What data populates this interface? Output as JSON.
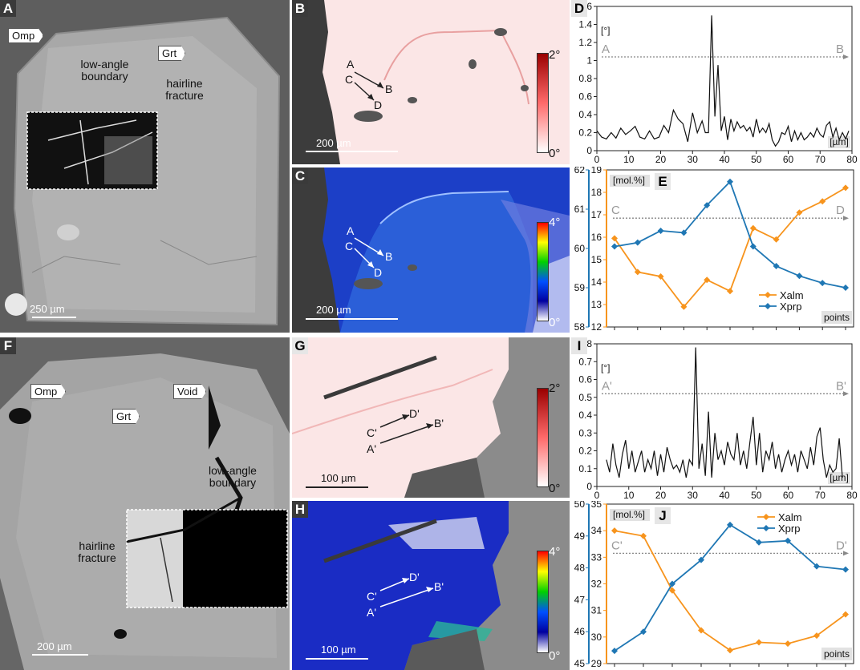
{
  "panels": {
    "A": {
      "label": "A",
      "omp": "Omp",
      "grt": "Grt",
      "ann1": "low-angle boundary",
      "ann2": "hairline fracture",
      "scale": "250 µm"
    },
    "B": {
      "label": "B",
      "pts": [
        "A",
        "C",
        "B",
        "D"
      ],
      "scale": "200 µm",
      "cb_max": "2°",
      "cb_min": "0°"
    },
    "C": {
      "label": "C",
      "pts": [
        "A",
        "C",
        "B",
        "D"
      ],
      "scale": "200 µm",
      "cb_max": "4°",
      "cb_min": "0°"
    },
    "F": {
      "label": "F",
      "omp": "Omp",
      "grt": "Grt",
      "void": "Void",
      "ann1": "low-angle boundary",
      "ann2": "hairline fracture",
      "scale": "200 µm"
    },
    "G": {
      "label": "G",
      "pts": [
        "C'",
        "D'",
        "A'",
        "B'"
      ],
      "scale": "100 µm",
      "cb_max": "2°",
      "cb_min": "0°"
    },
    "H": {
      "label": "H",
      "pts": [
        "C'",
        "D'",
        "A'",
        "B'"
      ],
      "scale": "100 µm",
      "cb_max": "4°",
      "cb_min": "0°"
    }
  },
  "chart_data": [
    {
      "id": "D",
      "type": "line",
      "label": "D",
      "ylabel": "[°]",
      "xlabel": "[µm]",
      "xlim": [
        0,
        80
      ],
      "ylim": [
        0,
        1.6
      ],
      "xticks": [
        0,
        10,
        20,
        30,
        40,
        50,
        60,
        70,
        80
      ],
      "yticks": [
        0,
        0.2,
        0.4,
        0.6,
        0.8,
        1.0,
        1.2,
        1.4,
        1.6
      ],
      "ref_line": {
        "y": 1.04,
        "start": "A",
        "end": "B"
      },
      "x": [
        0,
        1.5,
        3,
        4.5,
        6,
        7.5,
        9,
        10.5,
        12,
        13.5,
        15,
        16.5,
        18,
        19.5,
        21,
        22.5,
        24,
        25.5,
        27,
        28.5,
        30,
        31.5,
        33,
        34,
        35,
        36,
        37,
        38,
        39,
        40,
        41,
        42,
        43,
        44,
        45,
        46,
        47,
        48,
        49,
        50,
        51,
        52,
        53,
        54,
        55,
        56,
        57,
        58,
        59,
        60,
        61,
        62,
        63,
        64,
        65,
        66,
        67,
        68,
        69,
        70,
        71,
        72,
        73,
        74,
        75,
        76,
        77,
        78,
        79
      ],
      "y": [
        0.22,
        0.15,
        0.13,
        0.2,
        0.14,
        0.25,
        0.18,
        0.22,
        0.27,
        0.15,
        0.13,
        0.22,
        0.13,
        0.15,
        0.28,
        0.2,
        0.45,
        0.35,
        0.3,
        0.1,
        0.42,
        0.2,
        0.33,
        0.2,
        0.2,
        1.5,
        0.38,
        0.95,
        0.22,
        0.38,
        0.12,
        0.35,
        0.22,
        0.32,
        0.25,
        0.28,
        0.22,
        0.26,
        0.15,
        0.35,
        0.2,
        0.25,
        0.2,
        0.3,
        0.12,
        0.05,
        0.1,
        0.2,
        0.18,
        0.27,
        0.1,
        0.22,
        0.12,
        0.2,
        0.12,
        0.15,
        0.2,
        0.15,
        0.25,
        0.18,
        0.15,
        0.28,
        0.32,
        0.15,
        0.25,
        0.12,
        0.2,
        0.13,
        0.22
      ]
    },
    {
      "id": "E",
      "type": "line",
      "label": "E",
      "ylabel": "[mol.%]",
      "xlabel": "points",
      "left_axis": {
        "ticks": [
          12,
          13,
          14,
          15,
          16,
          17,
          18,
          19
        ],
        "lim": [
          12,
          19
        ]
      },
      "outer_axis": {
        "ticks": [
          58,
          59,
          60,
          61,
          62
        ],
        "lim": [
          58,
          62
        ]
      },
      "ref_line": {
        "y": 16.85,
        "start": "C",
        "end": "D"
      },
      "series": [
        {
          "name": "Xalm",
          "color": "#f7941d",
          "axis": "left",
          "values": [
            15.95,
            14.45,
            14.25,
            12.9,
            14.1,
            13.6,
            16.4,
            15.9,
            17.1,
            17.6,
            18.2
          ]
        },
        {
          "name": "Xprp",
          "color": "#1f77b4",
          "axis": "outer",
          "values": [
            60.05,
            60.15,
            60.45,
            60.4,
            61.1,
            61.7,
            60.05,
            59.55,
            59.3,
            59.12,
            59.0
          ]
        }
      ]
    },
    {
      "id": "I",
      "type": "line",
      "label": "I",
      "ylabel": "[°]",
      "xlabel": "[µm]",
      "xlim": [
        0,
        80
      ],
      "ylim": [
        0,
        0.8
      ],
      "xticks": [
        0,
        10,
        20,
        30,
        40,
        50,
        60,
        70,
        80
      ],
      "yticks": [
        0,
        0.1,
        0.2,
        0.3,
        0.4,
        0.5,
        0.6,
        0.7,
        0.8
      ],
      "ref_line": {
        "y": 0.52,
        "start": "A'",
        "end": "B'"
      },
      "x": [
        3,
        4,
        5,
        6,
        7,
        8,
        9,
        10,
        11,
        12,
        13,
        14,
        15,
        16,
        17,
        18,
        19,
        20,
        21,
        22,
        23,
        24,
        25,
        26,
        27,
        28,
        29,
        30,
        31,
        32,
        33,
        34,
        35,
        36,
        37,
        38,
        39,
        40,
        41,
        42,
        43,
        44,
        45,
        46,
        47,
        48,
        49,
        50,
        51,
        52,
        53,
        54,
        55,
        56,
        57,
        58,
        59,
        60,
        61,
        62,
        63,
        64,
        65,
        66,
        67,
        68,
        69,
        70,
        71,
        72,
        73,
        74,
        75,
        76,
        77
      ],
      "y": [
        0.15,
        0.08,
        0.24,
        0.12,
        0.05,
        0.18,
        0.26,
        0.1,
        0.2,
        0.08,
        0.14,
        0.2,
        0.08,
        0.15,
        0.1,
        0.2,
        0.06,
        0.18,
        0.08,
        0.22,
        0.15,
        0.1,
        0.12,
        0.08,
        0.15,
        0.05,
        0.15,
        0.12,
        0.78,
        0.1,
        0.24,
        0.06,
        0.42,
        0.05,
        0.3,
        0.15,
        0.2,
        0.12,
        0.25,
        0.18,
        0.15,
        0.3,
        0.12,
        0.2,
        0.1,
        0.25,
        0.39,
        0.12,
        0.3,
        0.08,
        0.2,
        0.15,
        0.25,
        0.1,
        0.18,
        0.08,
        0.15,
        0.2,
        0.12,
        0.18,
        0.08,
        0.2,
        0.15,
        0.1,
        0.22,
        0.12,
        0.28,
        0.33,
        0.15,
        0.05,
        0.12,
        0.08,
        0.1,
        0.27,
        0.05
      ]
    },
    {
      "id": "J",
      "type": "line",
      "label": "J",
      "ylabel": "[mol.%]",
      "xlabel": "points",
      "left_axis": {
        "ticks": [
          29,
          30,
          31,
          32,
          33,
          34,
          35
        ],
        "lim": [
          29,
          35
        ]
      },
      "outer_axis": {
        "ticks": [
          45,
          46,
          47,
          48,
          49,
          50
        ],
        "lim": [
          45,
          50
        ]
      },
      "ref_line": {
        "y": 33.15,
        "start": "C'",
        "end": "D'"
      },
      "series": [
        {
          "name": "Xalm",
          "color": "#f7941d",
          "axis": "left",
          "values": [
            34.0,
            33.8,
            31.75,
            30.25,
            29.5,
            29.8,
            29.75,
            30.05,
            30.85
          ]
        },
        {
          "name": "Xprp",
          "color": "#1f77b4",
          "axis": "outer",
          "values": [
            45.4,
            46.0,
            47.5,
            48.25,
            49.35,
            48.8,
            48.85,
            48.05,
            47.95
          ]
        }
      ]
    }
  ]
}
